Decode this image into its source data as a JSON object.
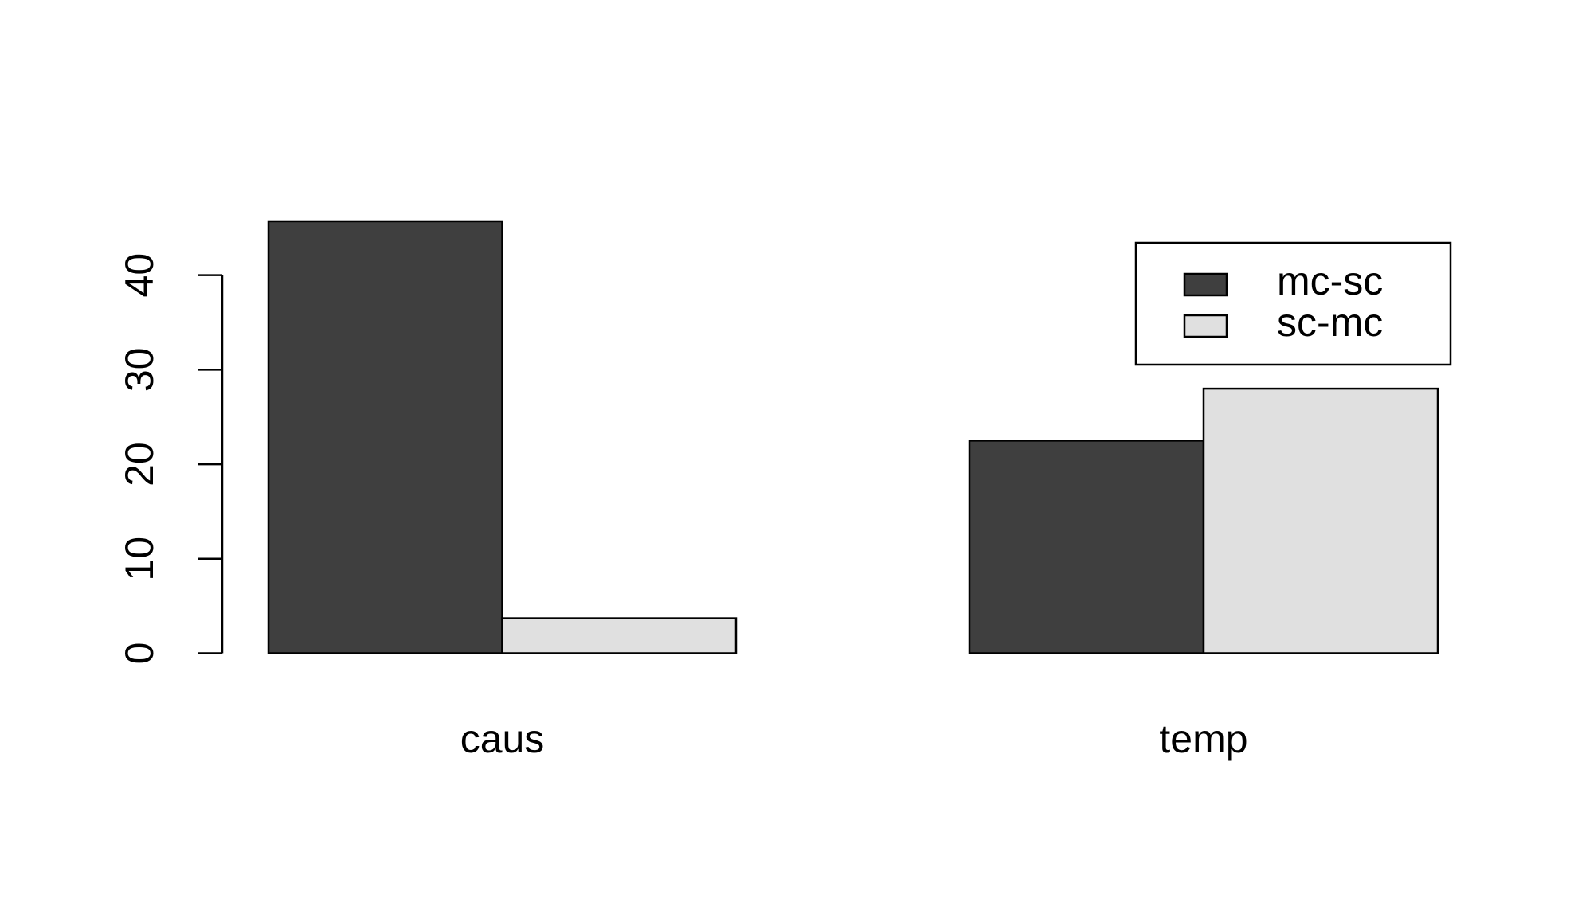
{
  "chart_data": {
    "type": "bar",
    "categories": [
      "caus",
      "temp"
    ],
    "series": [
      {
        "name": "mc-sc",
        "color": "#3f3f3f",
        "values": [
          45.7,
          22.5
        ]
      },
      {
        "name": "sc-mc",
        "color": "#e0e0e0",
        "values": [
          3.7,
          28.0
        ]
      }
    ],
    "ylim": [
      0,
      46
    ],
    "yticks": [
      0,
      10,
      20,
      30,
      40
    ],
    "grid": false,
    "legend": "topright"
  }
}
